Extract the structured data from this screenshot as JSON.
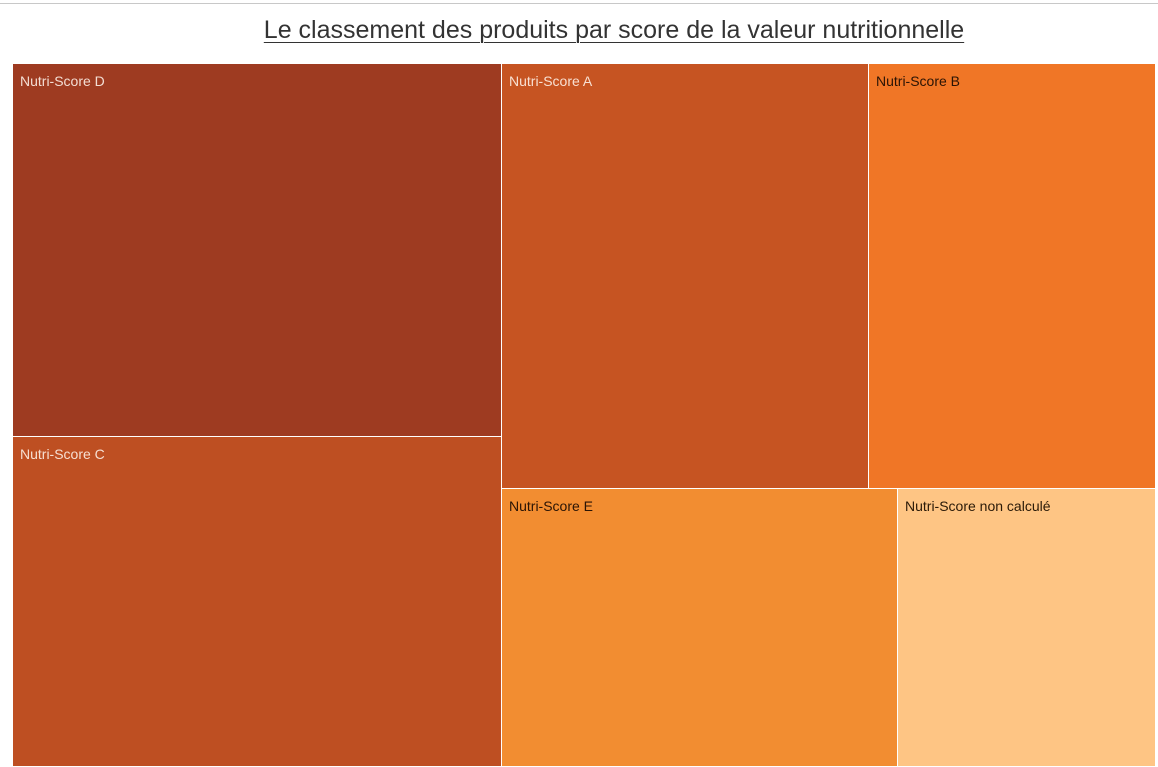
{
  "title": "Le classement des produits par score de la valeur nutritionnelle",
  "chart_data": {
    "type": "treemap",
    "title": "Le classement des produits par score de la valeur nutritionnelle",
    "tiles": [
      {
        "label": "Nutri-Score D",
        "color": "#9e3b21",
        "text_color": "#f3ddd3"
      },
      {
        "label": "Nutri-Score C",
        "color": "#be4f22",
        "text_color": "#f6dfd2"
      },
      {
        "label": "Nutri-Score A",
        "color": "#c65422",
        "text_color": "#f8e0d2"
      },
      {
        "label": "Nutri-Score B",
        "color": "#f07626",
        "text_color": "#2a1405"
      },
      {
        "label": "Nutri-Score E",
        "color": "#f28d31",
        "text_color": "#2a1405"
      },
      {
        "label": "Nutri-Score non calculé",
        "color": "#fec584",
        "text_color": "#2a1a08"
      }
    ]
  }
}
